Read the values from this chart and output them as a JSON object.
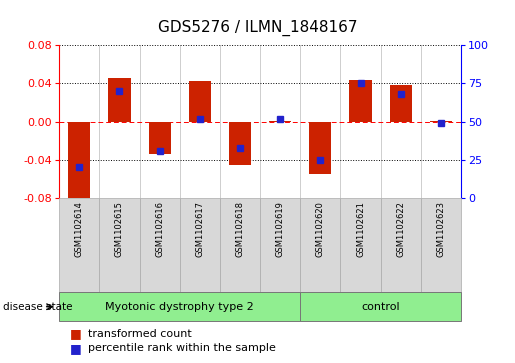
{
  "title": "GDS5276 / ILMN_1848167",
  "samples": [
    "GSM1102614",
    "GSM1102615",
    "GSM1102616",
    "GSM1102617",
    "GSM1102618",
    "GSM1102619",
    "GSM1102620",
    "GSM1102621",
    "GSM1102622",
    "GSM1102623"
  ],
  "transformed_count": [
    -0.085,
    0.046,
    -0.034,
    0.043,
    -0.046,
    0.001,
    -0.055,
    0.044,
    0.038,
    0.001
  ],
  "percentile_rank": [
    20,
    70,
    31,
    52,
    33,
    52,
    25,
    75,
    68,
    49
  ],
  "ylim_left": [
    -0.08,
    0.08
  ],
  "ylim_right": [
    0,
    100
  ],
  "yticks_left": [
    -0.08,
    -0.04,
    0.0,
    0.04,
    0.08
  ],
  "yticks_right": [
    0,
    25,
    50,
    75,
    100
  ],
  "groups": [
    {
      "label": "Myotonic dystrophy type 2",
      "start": 0,
      "end": 5,
      "color": "#90EE90"
    },
    {
      "label": "control",
      "start": 6,
      "end": 9,
      "color": "#90EE90"
    }
  ],
  "disease_state_label": "disease state",
  "bar_color": "#CC2200",
  "marker_color": "#2222CC",
  "cell_color": "#D8D8D8",
  "plot_bg_color": "#FFFFFF",
  "legend_items": [
    {
      "label": "transformed count",
      "color": "#CC2200"
    },
    {
      "label": "percentile rank within the sample",
      "color": "#2222CC"
    }
  ],
  "title_fontsize": 11,
  "axis_fontsize": 8,
  "legend_fontsize": 8,
  "sample_fontsize": 6
}
